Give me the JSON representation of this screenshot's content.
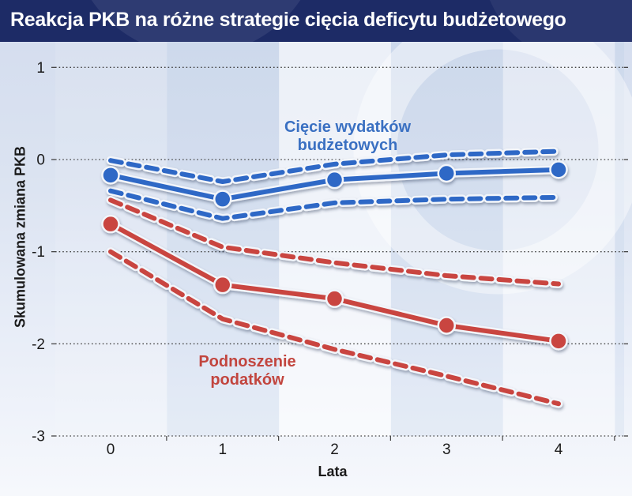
{
  "colors": {
    "title_bar_bg": "#1d2b66",
    "title_text": "#ffffff",
    "plot_blue": "#2e68c6",
    "plot_red": "#c94541",
    "spending_label_text": "#3a70c2",
    "tax_label_text": "#c2453e",
    "grid": "#444444",
    "tick_text": "#1a1a1a",
    "line_casing": "#f2f5fa"
  },
  "chart_data": {
    "type": "line",
    "title": "Reakcja PKB na różne strategie cięcia deficytu budżetowego",
    "xlabel": "Lata",
    "ylabel": "Skumulowana zmiana PKB",
    "x": [
      0,
      1,
      2,
      3,
      4
    ],
    "x_tick_labels": [
      "0",
      "1",
      "2",
      "3",
      "4"
    ],
    "y_ticks": [
      1,
      0,
      -1,
      -2,
      -3
    ],
    "y_tick_labels": [
      "1",
      "0",
      "-1",
      "-2",
      "-3"
    ],
    "ylim": [
      -3,
      1
    ],
    "xlim": [
      -0.5,
      4.6
    ],
    "grid": "horizontal dotted lines at each y tick",
    "legend_position": "inline text annotations near each series",
    "series": [
      {
        "id": "spending-cuts-mean",
        "name": "Cięcie wydatków budżetowych",
        "style": "solid",
        "markers": true,
        "color": "#2e68c6",
        "values": [
          -0.17,
          -0.43,
          -0.22,
          -0.15,
          -0.11
        ]
      },
      {
        "id": "spending-cuts-upper",
        "band": "upper",
        "style": "dashed",
        "markers": false,
        "color": "#2e68c6",
        "values": [
          -0.01,
          -0.24,
          -0.05,
          0.05,
          0.09
        ]
      },
      {
        "id": "spending-cuts-lower",
        "band": "lower",
        "style": "dashed",
        "markers": false,
        "color": "#2e68c6",
        "values": [
          -0.34,
          -0.64,
          -0.47,
          -0.43,
          -0.41
        ]
      },
      {
        "id": "tax-increase-mean",
        "name": "Podnoszenie podatków",
        "style": "solid",
        "markers": true,
        "color": "#c94541",
        "values": [
          -0.7,
          -1.36,
          -1.51,
          -1.8,
          -1.97
        ]
      },
      {
        "id": "tax-increase-upper",
        "band": "upper",
        "style": "dashed",
        "markers": false,
        "color": "#c94541",
        "values": [
          -0.44,
          -0.95,
          -1.12,
          -1.26,
          -1.35
        ]
      },
      {
        "id": "tax-increase-lower",
        "band": "lower",
        "style": "dashed",
        "markers": false,
        "color": "#c94541",
        "values": [
          -1.0,
          -1.73,
          -2.06,
          -2.35,
          -2.65
        ]
      }
    ]
  }
}
